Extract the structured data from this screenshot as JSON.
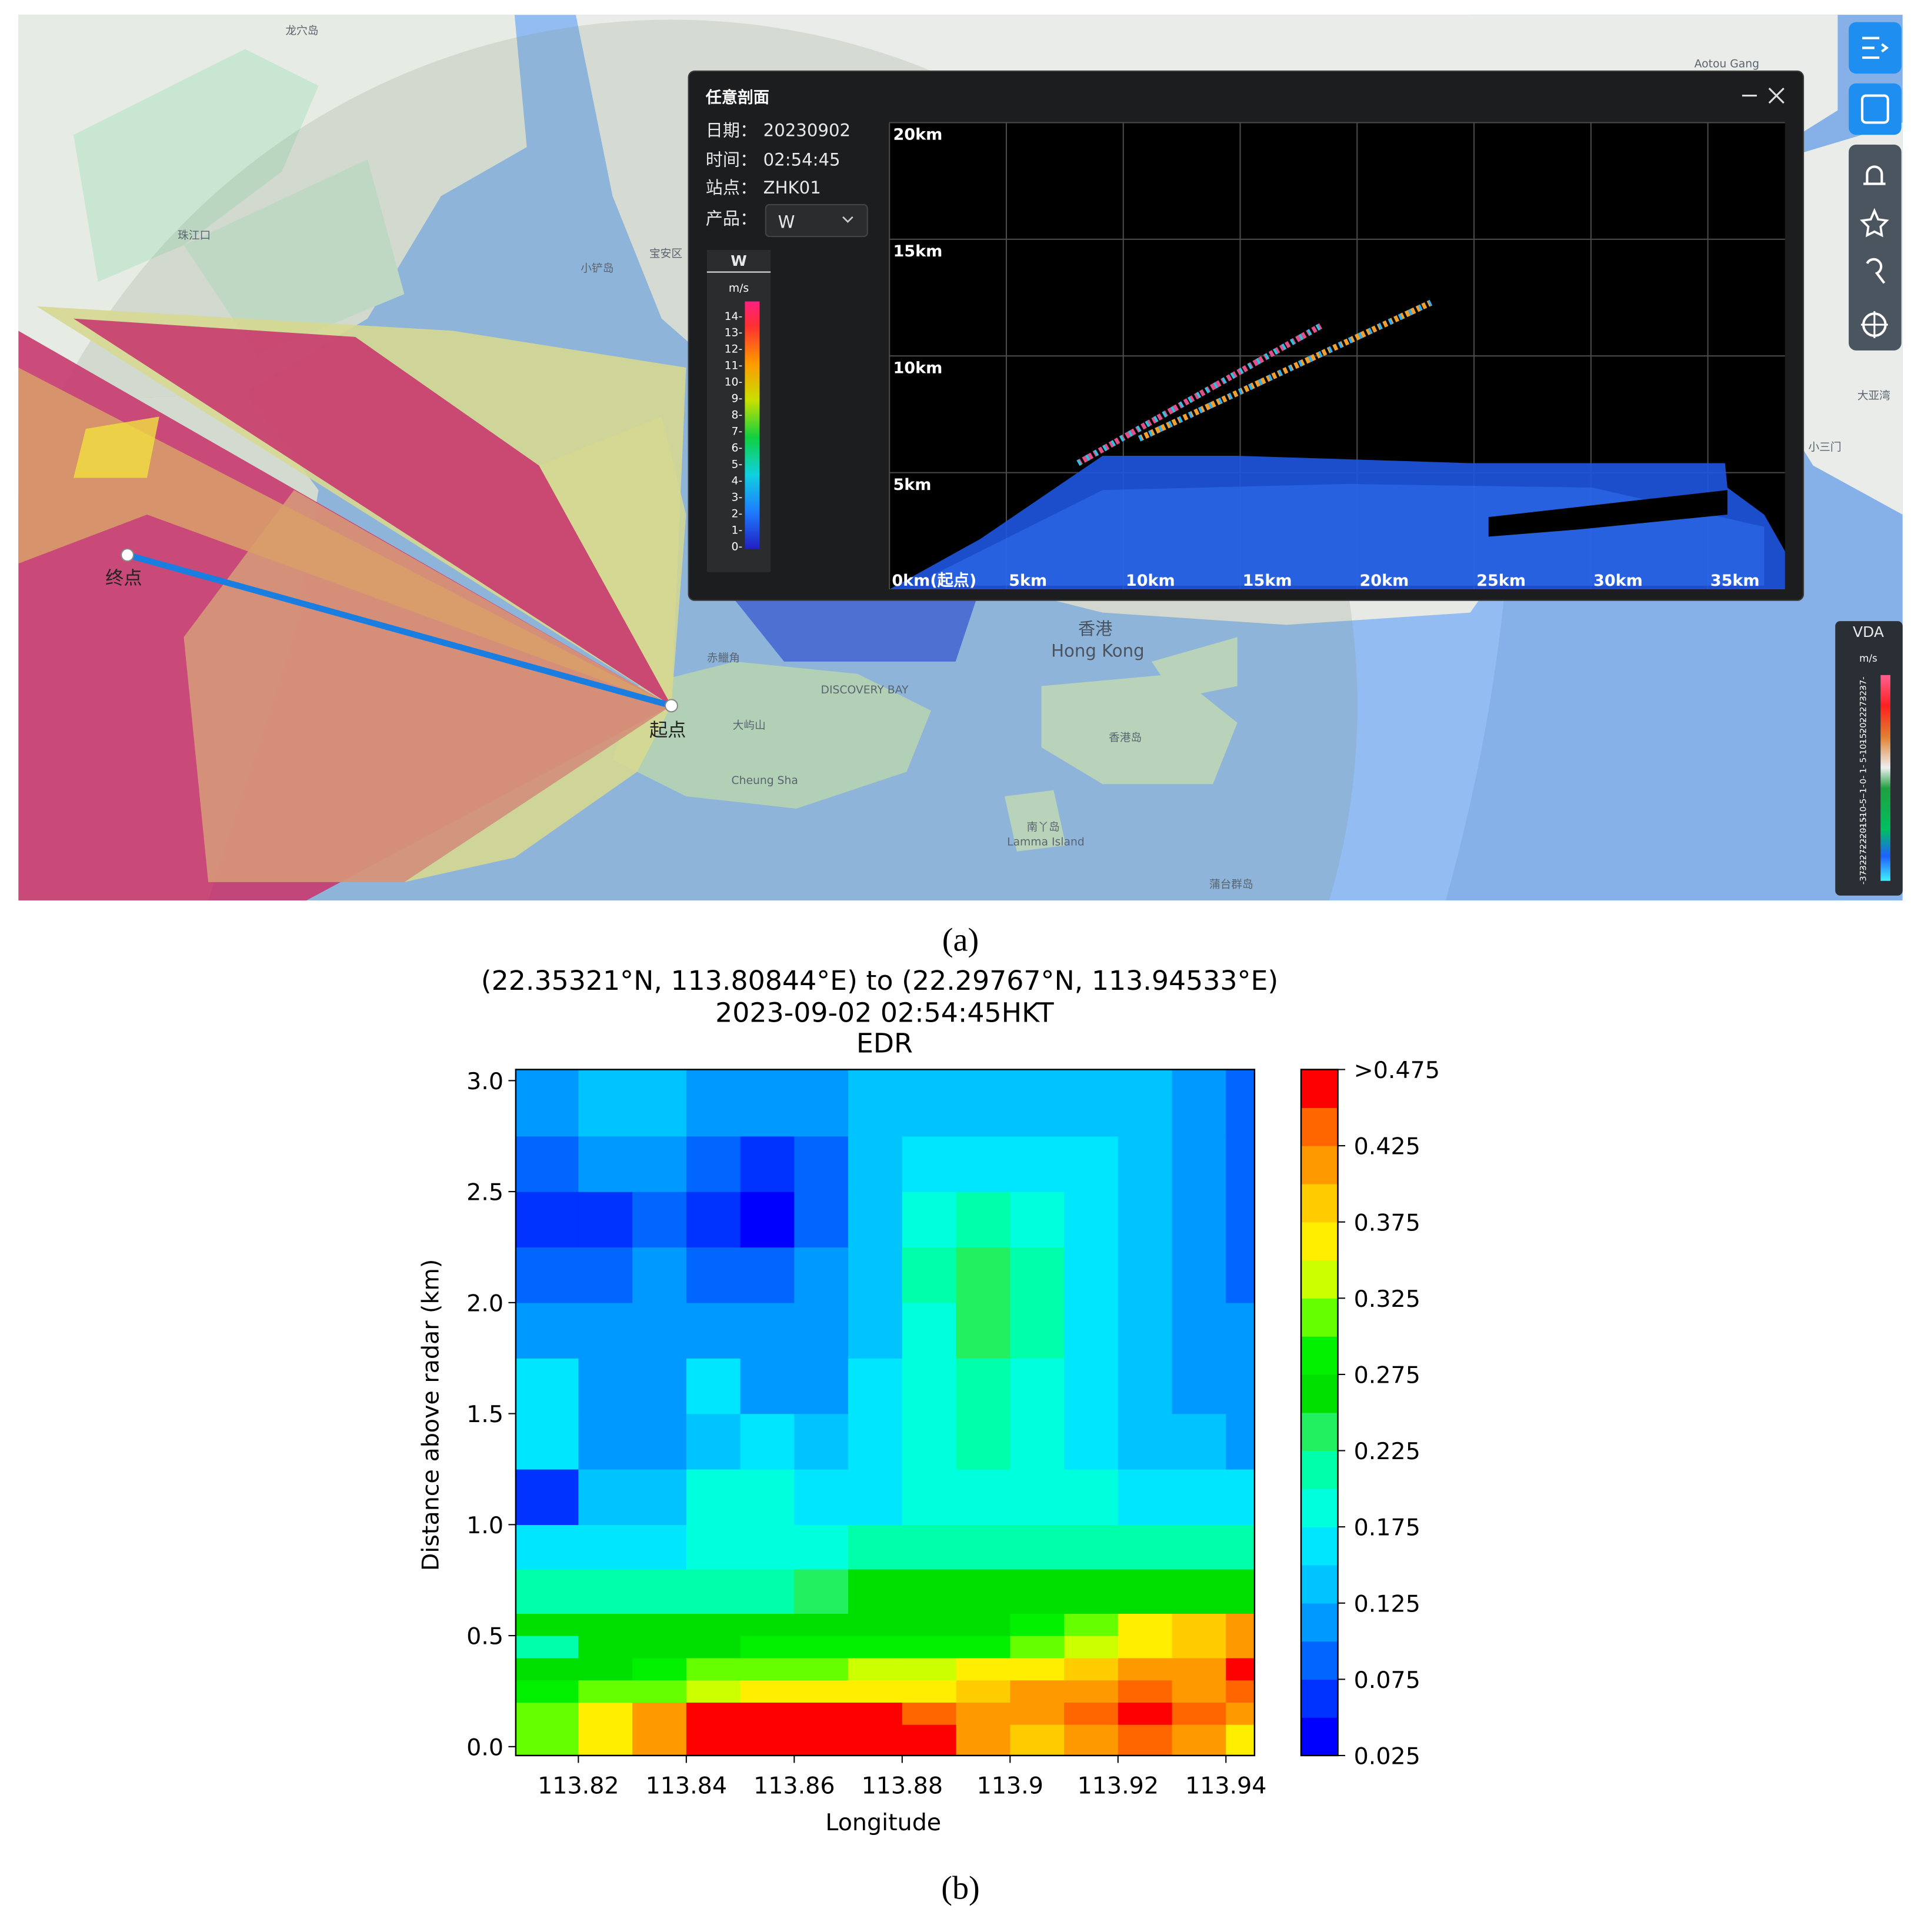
{
  "screenshot": {
    "map": {
      "labels": [
        "龙穴岛",
        "珠江口",
        "宝安区",
        "小铲岛",
        "香港",
        "Hong Kong",
        "赤鱲角",
        "大屿山",
        "Cheung Sha",
        "DISCOVERY BAY",
        "香港岛",
        "南丫岛",
        "Lamma Island",
        "蒲台群岛",
        "大亚湾",
        "小三门",
        "Aotou Gang"
      ],
      "start": "起点",
      "end": "终点"
    },
    "window": {
      "title": "任意剖面",
      "fields": [
        {
          "label": "日期：",
          "value": "20230902"
        },
        {
          "label": "时间：",
          "value": "02:54:45"
        },
        {
          "label": "站点：",
          "value": "ZHK01"
        },
        {
          "label": "产品：",
          "value": "W"
        }
      ],
      "legend": {
        "title": "W",
        "unit": "m/s",
        "labels": [
          "14-",
          "13-",
          "12-",
          "11-",
          "10-",
          "9-",
          "8-",
          "7-",
          "6-",
          "5-",
          "4-",
          "3-",
          "2-",
          "1-",
          "0-"
        ]
      },
      "section": {
        "xlim": [
          0,
          38.3
        ],
        "ylim": [
          0,
          20
        ],
        "xticks": [
          {
            "value": 0,
            "label": "0km(起点)"
          },
          {
            "value": 5,
            "label": "5km"
          },
          {
            "value": 10,
            "label": "10km"
          },
          {
            "value": 15,
            "label": "15km"
          },
          {
            "value": 20,
            "label": "20km"
          },
          {
            "value": 25,
            "label": "25km"
          },
          {
            "value": 30,
            "label": "30km"
          },
          {
            "value": 35,
            "label": "35km"
          }
        ],
        "yticks": [
          {
            "value": 5,
            "label": "5km"
          },
          {
            "value": 10,
            "label": "10km"
          },
          {
            "value": 15,
            "label": "15km"
          },
          {
            "value": 20,
            "label": "20km"
          }
        ]
      }
    },
    "vda_legend": {
      "title": "VDA",
      "unit": "m/s",
      "labels": [
        "37-",
        "32-",
        "27-",
        "22-",
        "20-",
        "15-",
        "10-",
        "5-",
        "1-",
        "0-",
        "-1-",
        "-5-",
        "-10-",
        "-15-",
        "-20-",
        "-22-",
        "-27-",
        "-32-",
        "-37-"
      ]
    }
  },
  "captions": [
    "(a)",
    "(b)"
  ],
  "chart_data": {
    "type": "heatmap",
    "title_lines": [
      "(22.35321°N, 113.80844°E) to (22.29767°N, 113.94533°E)",
      "2023-09-02 02:54:45HKT",
      "EDR"
    ],
    "x_label": "Longitude",
    "y_label": "Distance above radar (km)",
    "xlim": [
      113.8084,
      113.9453
    ],
    "ylim": [
      -0.04,
      3.05
    ],
    "xticks": [
      113.82,
      113.84,
      113.86,
      113.88,
      113.9,
      113.92,
      113.94
    ],
    "yticks": [
      {
        "value": 0,
        "label": "0.0"
      },
      0.5,
      {
        "value": 1,
        "label": "1.0"
      },
      1.5,
      {
        "value": 2,
        "label": "2.0"
      },
      2.5,
      {
        "value": 3,
        "label": "3.0"
      }
    ],
    "xbins": [
      113.8084,
      113.82,
      113.83,
      113.84,
      113.85,
      113.86,
      113.87,
      113.88,
      113.89,
      113.9,
      113.91,
      113.92,
      113.93,
      113.94,
      113.9453
    ],
    "ybins": [
      -0.04,
      0.1,
      0.2,
      0.3,
      0.4,
      0.5,
      0.6,
      0.8,
      1.0,
      1.25,
      1.5,
      1.75,
      2.0,
      2.25,
      2.5,
      2.75,
      3.05
    ],
    "z": [
      [
        0.31,
        0.36,
        0.42,
        0.48,
        0.48,
        0.48,
        0.48,
        0.45,
        0.4,
        0.38,
        0.42,
        0.43,
        0.42,
        0.35
      ],
      [
        0.3,
        0.35,
        0.42,
        0.48,
        0.48,
        0.48,
        0.46,
        0.44,
        0.41,
        0.42,
        0.44,
        0.45,
        0.44,
        0.42
      ],
      [
        0.28,
        0.3,
        0.32,
        0.33,
        0.35,
        0.36,
        0.37,
        0.37,
        0.38,
        0.4,
        0.42,
        0.44,
        0.42,
        0.44
      ],
      [
        0.25,
        0.27,
        0.28,
        0.3,
        0.31,
        0.32,
        0.33,
        0.34,
        0.35,
        0.37,
        0.38,
        0.4,
        0.42,
        0.46
      ],
      [
        0.22,
        0.25,
        0.26,
        0.27,
        0.28,
        0.28,
        0.28,
        0.28,
        0.28,
        0.3,
        0.33,
        0.36,
        0.39,
        0.42
      ],
      [
        0.26,
        0.26,
        0.26,
        0.26,
        0.26,
        0.26,
        0.26,
        0.26,
        0.27,
        0.28,
        0.31,
        0.35,
        0.38,
        0.41
      ],
      [
        0.2,
        0.2,
        0.22,
        0.22,
        0.22,
        0.24,
        0.25,
        0.26,
        0.26,
        0.26,
        0.26,
        0.26,
        0.26,
        0.26
      ],
      [
        0.15,
        0.16,
        0.17,
        0.19,
        0.19,
        0.19,
        0.2,
        0.21,
        0.22,
        0.22,
        0.22,
        0.22,
        0.21,
        0.22
      ],
      [
        0.05,
        0.13,
        0.14,
        0.18,
        0.18,
        0.17,
        0.17,
        0.18,
        0.19,
        0.19,
        0.18,
        0.17,
        0.17,
        0.17
      ],
      [
        0.17,
        0.12,
        0.11,
        0.13,
        0.15,
        0.13,
        0.17,
        0.19,
        0.2,
        0.19,
        0.17,
        0.14,
        0.13,
        0.12
      ],
      [
        0.16,
        0.12,
        0.11,
        0.17,
        0.11,
        0.11,
        0.15,
        0.19,
        0.21,
        0.19,
        0.16,
        0.13,
        0.12,
        0.11
      ],
      [
        0.1,
        0.1,
        0.1,
        0.1,
        0.1,
        0.1,
        0.14,
        0.18,
        0.23,
        0.2,
        0.16,
        0.13,
        0.11,
        0.1
      ],
      [
        0.08,
        0.09,
        0.1,
        0.09,
        0.08,
        0.1,
        0.14,
        0.2,
        0.23,
        0.2,
        0.17,
        0.13,
        0.11,
        0.09
      ],
      [
        0.06,
        0.07,
        0.09,
        0.05,
        0.04,
        0.08,
        0.14,
        0.18,
        0.2,
        0.19,
        0.17,
        0.14,
        0.11,
        0.09
      ],
      [
        0.09,
        0.1,
        0.11,
        0.08,
        0.05,
        0.09,
        0.13,
        0.16,
        0.17,
        0.17,
        0.16,
        0.14,
        0.12,
        0.09
      ],
      [
        0.11,
        0.13,
        0.13,
        0.1,
        0.1,
        0.11,
        0.13,
        0.14,
        0.14,
        0.14,
        0.14,
        0.13,
        0.11,
        0.09
      ]
    ],
    "colorbar": {
      "lim": [
        0.025,
        0.475
      ],
      "ticks": [
        0.025,
        0.075,
        0.125,
        0.175,
        0.225,
        0.275,
        0.325,
        0.375,
        0.425,
        {
          "value": 0.475,
          "label": ">0.475"
        }
      ],
      "colors": [
        "#0000ff",
        "#0033ff",
        "#0066ff",
        "#0099ff",
        "#00c4ff",
        "#00e6ff",
        "#00ffdd",
        "#00ffaa",
        "#22f060",
        "#00e000",
        "#00f000",
        "#66ff00",
        "#ccff00",
        "#ffee00",
        "#ffcc00",
        "#ff9900",
        "#ff6600",
        "#ff0000"
      ]
    }
  }
}
